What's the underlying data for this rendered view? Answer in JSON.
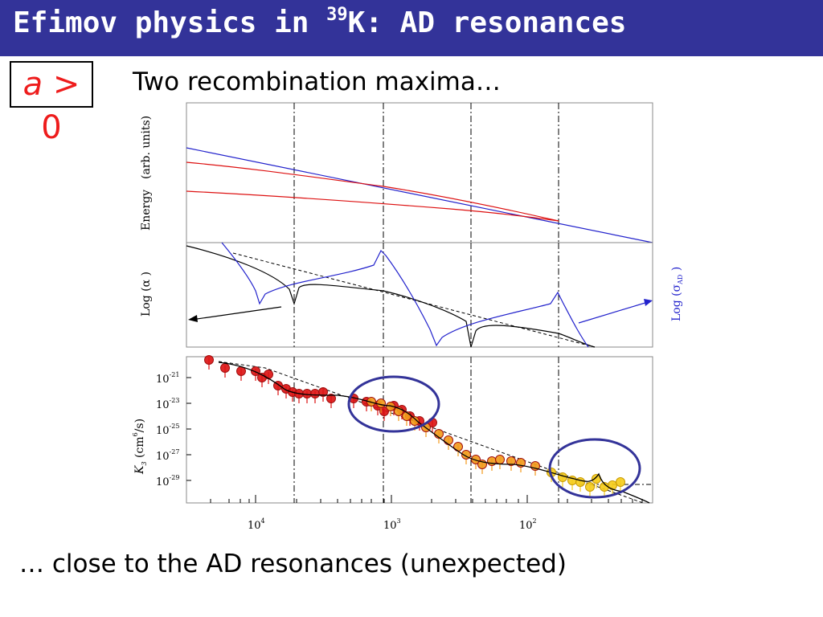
{
  "header": {
    "title_prefix": "Efimov physics in ",
    "title_sup": "39",
    "title_suffix": "K: AD resonances",
    "background_color": "#333399"
  },
  "condition": {
    "variable": "a",
    "relation": " > 0",
    "color": "#ee1c1c"
  },
  "subtitle": "Two recombination maxima…",
  "caption": "… close to the AD resonances (unexpected)",
  "figure": {
    "panel_top": {
      "ylabel_main": "Energy",
      "ylabel_units": "(arb. units)"
    },
    "panel_middle": {
      "ylabel_left": "Log  (α )",
      "ylabel_right_main": "Log  (σ",
      "ylabel_right_sub": "AD",
      "ylabel_right_close": " )"
    },
    "panel_bottom": {
      "ylabel_var": "K",
      "ylabel_sub": "3",
      "ylabel_units": " (cm",
      "ylabel_exp": "6",
      "ylabel_tail": "/s)",
      "yticks": [
        {
          "base": "10",
          "exp": "-21"
        },
        {
          "base": "10",
          "exp": "-23"
        },
        {
          "base": "10",
          "exp": "-25"
        },
        {
          "base": "10",
          "exp": "-27"
        },
        {
          "base": "10",
          "exp": "-29"
        }
      ],
      "xticks": [
        {
          "base": "10",
          "exp": "4"
        },
        {
          "base": "10",
          "exp": "3"
        },
        {
          "base": "10",
          "exp": "2"
        }
      ]
    }
  },
  "colors": {
    "red": "#dd1111",
    "blue": "#2222cc",
    "orange": "#f29a1a",
    "yellow": "#f5cc1a",
    "circle": "#333399"
  }
}
